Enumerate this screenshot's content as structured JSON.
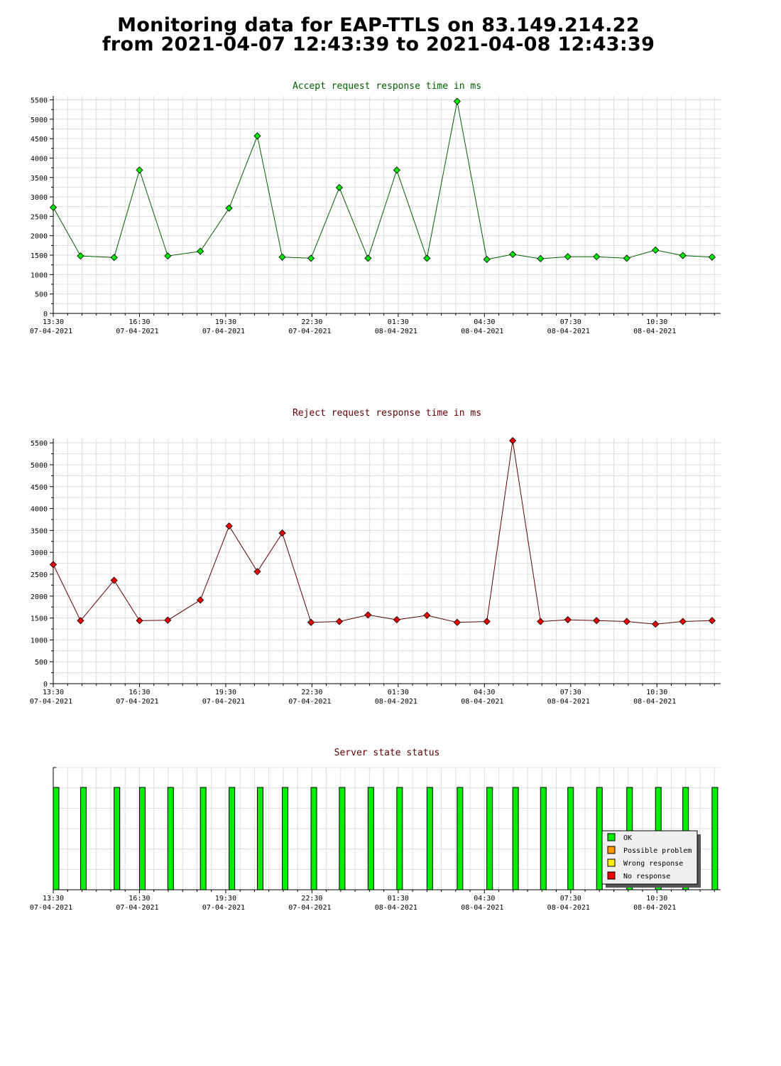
{
  "page": {
    "title_line1": "Monitoring data for EAP-TTLS on 83.149.214.22",
    "title_line2": "from 2021-04-07 12:43:39 to 2021-04-08 12:43:39"
  },
  "colors": {
    "accept_title": "#006000",
    "reject_title": "#600000",
    "status_title": "#600000",
    "accept_marker": "#00e600",
    "reject_marker": "#ee0000",
    "accept_line": "#006000",
    "reject_line": "#600000",
    "grid": "#dcdcdc",
    "ok": "#00ee00",
    "possible_problem": "#ff9900",
    "wrong_response": "#ffee00",
    "no_response": "#ee0000"
  },
  "chart_data": [
    {
      "type": "line",
      "title": "Accept request response time in ms",
      "grid": true,
      "ylim": [
        0,
        5600
      ],
      "yticks": [
        0,
        500,
        1000,
        1500,
        2000,
        2500,
        3000,
        3500,
        4000,
        4500,
        5000,
        5500
      ],
      "xlim": [
        "2021-04-07 13:30",
        "2021-04-08 12:43"
      ],
      "xticks": [
        {
          "time": "13:30",
          "date": "07-04-2021"
        },
        {
          "time": "16:30",
          "date": "07-04-2021"
        },
        {
          "time": "19:30",
          "date": "07-04-2021"
        },
        {
          "time": "22:30",
          "date": "07-04-2021"
        },
        {
          "time": "01:30",
          "date": "08-04-2021"
        },
        {
          "time": "04:30",
          "date": "08-04-2021"
        },
        {
          "time": "07:30",
          "date": "08-04-2021"
        },
        {
          "time": "10:30",
          "date": "08-04-2021"
        }
      ],
      "x": [
        "2021-04-07 13:30",
        "2021-04-07 14:27",
        "2021-04-07 15:37",
        "2021-04-07 16:30",
        "2021-04-07 17:29",
        "2021-04-07 18:37",
        "2021-04-07 19:37",
        "2021-04-07 20:36",
        "2021-04-07 21:28",
        "2021-04-07 22:28",
        "2021-04-07 23:27",
        "2021-04-08 00:27",
        "2021-04-08 01:27",
        "2021-04-08 02:30",
        "2021-04-08 03:33",
        "2021-04-08 04:35",
        "2021-04-08 05:29",
        "2021-04-08 06:27",
        "2021-04-08 07:24",
        "2021-04-08 08:24",
        "2021-04-08 09:27",
        "2021-04-08 10:27",
        "2021-04-08 11:24",
        "2021-04-08 12:25"
      ],
      "values": [
        2730,
        1480,
        1440,
        3690,
        1480,
        1600,
        2710,
        4570,
        1450,
        1420,
        3240,
        1420,
        3690,
        1420,
        5460,
        1390,
        1520,
        1410,
        1460,
        1460,
        1420,
        1630,
        1490,
        1450
      ]
    },
    {
      "type": "line",
      "title": "Reject request response time in ms",
      "grid": true,
      "ylim": [
        0,
        5600
      ],
      "yticks": [
        0,
        500,
        1000,
        1500,
        2000,
        2500,
        3000,
        3500,
        4000,
        4500,
        5000,
        5500
      ],
      "xlim": [
        "2021-04-07 13:30",
        "2021-04-08 12:43"
      ],
      "xticks": [
        {
          "time": "13:30",
          "date": "07-04-2021"
        },
        {
          "time": "16:30",
          "date": "07-04-2021"
        },
        {
          "time": "19:30",
          "date": "07-04-2021"
        },
        {
          "time": "22:30",
          "date": "07-04-2021"
        },
        {
          "time": "01:30",
          "date": "08-04-2021"
        },
        {
          "time": "04:30",
          "date": "08-04-2021"
        },
        {
          "time": "07:30",
          "date": "08-04-2021"
        },
        {
          "time": "10:30",
          "date": "08-04-2021"
        }
      ],
      "x": [
        "2021-04-07 13:30",
        "2021-04-07 14:27",
        "2021-04-07 15:37",
        "2021-04-07 16:30",
        "2021-04-07 17:29",
        "2021-04-07 18:37",
        "2021-04-07 19:37",
        "2021-04-07 20:36",
        "2021-04-07 21:28",
        "2021-04-07 22:28",
        "2021-04-07 23:27",
        "2021-04-08 00:27",
        "2021-04-08 01:27",
        "2021-04-08 02:30",
        "2021-04-08 03:33",
        "2021-04-08 04:35",
        "2021-04-08 05:29",
        "2021-04-08 06:27",
        "2021-04-08 07:24",
        "2021-04-08 08:24",
        "2021-04-08 09:27",
        "2021-04-08 10:27",
        "2021-04-08 11:24",
        "2021-04-08 12:25"
      ],
      "values": [
        2720,
        1440,
        2360,
        1440,
        1450,
        1910,
        3600,
        2560,
        3440,
        1400,
        1420,
        1570,
        1460,
        1560,
        1400,
        1420,
        5550,
        1420,
        1460,
        1440,
        1420,
        1360,
        1420,
        1440
      ]
    },
    {
      "type": "bar",
      "title": "Server state status",
      "grid": true,
      "xlim": [
        "2021-04-07 13:30",
        "2021-04-08 12:43"
      ],
      "xticks": [
        {
          "time": "13:30",
          "date": "07-04-2021"
        },
        {
          "time": "16:30",
          "date": "07-04-2021"
        },
        {
          "time": "19:30",
          "date": "07-04-2021"
        },
        {
          "time": "22:30",
          "date": "07-04-2021"
        },
        {
          "time": "01:30",
          "date": "08-04-2021"
        },
        {
          "time": "04:30",
          "date": "08-04-2021"
        },
        {
          "time": "07:30",
          "date": "08-04-2021"
        },
        {
          "time": "10:30",
          "date": "08-04-2021"
        }
      ],
      "x": [
        "2021-04-07 13:30",
        "2021-04-07 14:27",
        "2021-04-07 15:37",
        "2021-04-07 16:30",
        "2021-04-07 17:29",
        "2021-04-07 18:37",
        "2021-04-07 19:37",
        "2021-04-07 20:36",
        "2021-04-07 21:28",
        "2021-04-07 22:28",
        "2021-04-07 23:27",
        "2021-04-08 00:27",
        "2021-04-08 01:27",
        "2021-04-08 02:30",
        "2021-04-08 03:33",
        "2021-04-08 04:35",
        "2021-04-08 05:29",
        "2021-04-08 06:27",
        "2021-04-08 07:24",
        "2021-04-08 08:24",
        "2021-04-08 09:27",
        "2021-04-08 10:27",
        "2021-04-08 11:24",
        "2021-04-08 12:25"
      ],
      "states": [
        "OK",
        "OK",
        "OK",
        "OK",
        "OK",
        "OK",
        "OK",
        "OK",
        "OK",
        "OK",
        "OK",
        "OK",
        "OK",
        "OK",
        "OK",
        "OK",
        "OK",
        "OK",
        "OK",
        "OK",
        "OK",
        "OK",
        "OK",
        "OK"
      ],
      "legend_position": "bottom-right",
      "legend": [
        {
          "label": "OK",
          "color": "#00ee00"
        },
        {
          "label": "Possible problem",
          "color": "#ff9900"
        },
        {
          "label": "Wrong response",
          "color": "#ffee00"
        },
        {
          "label": "No response",
          "color": "#ee0000"
        }
      ]
    }
  ]
}
